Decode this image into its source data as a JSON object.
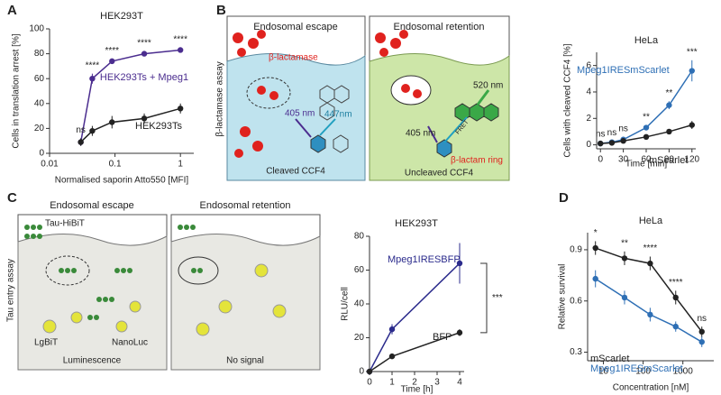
{
  "panel_labels": [
    "A",
    "B",
    "C",
    "D"
  ],
  "chart_data": [
    {
      "type": "line",
      "title": "HEK293T",
      "xlabel": "Normalised saporin Atto550 [MFI]",
      "ylabel": "Cells in translation arrest [%]",
      "xlog": true,
      "x": [
        0.03,
        0.045,
        0.09,
        0.28,
        1.0
      ],
      "xlim": [
        0.01,
        1.6
      ],
      "xticks": [
        0.01,
        0.1,
        1
      ],
      "ylim": [
        0,
        100
      ],
      "yticks": [
        0,
        20,
        40,
        60,
        80,
        100
      ],
      "series": [
        {
          "name": "HEK293Ts + Mpeg1",
          "color": "#4b2d8f",
          "values": [
            9,
            60,
            74,
            80,
            83
          ],
          "errors": [
            3,
            4,
            2,
            2,
            2
          ]
        },
        {
          "name": "HEK293Ts",
          "color": "#222222",
          "values": [
            9,
            18,
            25,
            28,
            36
          ],
          "errors": [
            3,
            4,
            5,
            4,
            4
          ]
        }
      ],
      "significance": [
        "ns",
        "****",
        "****",
        "****",
        "****"
      ]
    },
    {
      "type": "line",
      "title": "HeLa",
      "xlabel": "Time [min]",
      "ylabel": "Cells with cleaved CCF4 [%]",
      "xlog": false,
      "x": [
        0,
        15,
        30,
        60,
        90,
        120
      ],
      "xlim": [
        -5,
        125
      ],
      "xticks": [
        0,
        30,
        60,
        90,
        120
      ],
      "ylim": [
        -0.3,
        7
      ],
      "yticks": [
        0,
        2,
        4,
        6
      ],
      "series": [
        {
          "name": "Mpeg1IRESmScarlet",
          "color": "#2e6fb5",
          "values": [
            0.1,
            0.2,
            0.4,
            1.3,
            3.0,
            5.6
          ],
          "errors": [
            0.1,
            0.1,
            0.2,
            0.2,
            0.3,
            0.8
          ]
        },
        {
          "name": "mScarlet",
          "color": "#222222",
          "values": [
            0.1,
            0.15,
            0.3,
            0.6,
            1.0,
            1.5
          ],
          "errors": [
            0.1,
            0.1,
            0.1,
            0.1,
            0.2,
            0.3
          ]
        }
      ],
      "significance": [
        "ns",
        "ns",
        "ns",
        "**",
        "**",
        "***"
      ]
    },
    {
      "type": "line",
      "title": "HEK293T",
      "xlabel": "Time [h]",
      "ylabel": "RLU/cell",
      "xlog": false,
      "x": [
        0,
        1,
        4
      ],
      "xlim": [
        0,
        4.2
      ],
      "xticks": [
        0,
        1,
        2,
        3,
        4
      ],
      "ylim": [
        0,
        80
      ],
      "yticks": [
        0,
        20,
        40,
        60,
        80
      ],
      "series": [
        {
          "name": "Mpeg1IRESBFP",
          "color": "#2b2b8c",
          "values": [
            0,
            25,
            64
          ],
          "errors": [
            0,
            3,
            12
          ]
        },
        {
          "name": "BFP",
          "color": "#222222",
          "values": [
            0,
            9,
            23
          ],
          "errors": [
            0,
            1,
            2
          ]
        }
      ],
      "annotation": "***"
    },
    {
      "type": "line",
      "title": "HeLa",
      "xlabel": "Concentration [nM]",
      "ylabel": "Relative survival",
      "xlog": true,
      "x": [
        6.3,
        34,
        150,
        660,
        3000
      ],
      "xlim": [
        4,
        6000
      ],
      "xticks": [
        10,
        100,
        1000
      ],
      "ylim": [
        0.25,
        1.0
      ],
      "yticks": [
        0.3,
        0.6,
        0.9
      ],
      "series": [
        {
          "name": "mScarlet",
          "color": "#222222",
          "values": [
            0.91,
            0.85,
            0.82,
            0.62,
            0.42
          ],
          "errors": [
            0.04,
            0.04,
            0.04,
            0.04,
            0.03
          ]
        },
        {
          "name": "Mpeg1IRESmScarlet",
          "color": "#2e6fb5",
          "values": [
            0.73,
            0.62,
            0.52,
            0.45,
            0.36
          ],
          "errors": [
            0.05,
            0.04,
            0.04,
            0.03,
            0.03
          ]
        }
      ],
      "significance": [
        "*",
        "**",
        "****",
        "****",
        "ns"
      ]
    }
  ],
  "diagrams": [
    {
      "side_label": "β-lactamase assay",
      "panels": [
        {
          "title": "Endosomal escape",
          "labels": [
            "β-lactamase",
            "405 nm",
            "447nm"
          ],
          "caption": "Cleaved CCF4"
        },
        {
          "title": "Endosomal retention",
          "labels": [
            "520 nm",
            "FRET",
            "405 nm",
            "β-lactam ring"
          ],
          "caption": "Uncleaved CCF4"
        }
      ]
    },
    {
      "side_label": "Tau entry assay",
      "panels": [
        {
          "title": "Endosomal escape",
          "labels": [
            "Tau-HiBiT",
            "LgBiT",
            "NanoLuc"
          ],
          "caption": "Luminescence"
        },
        {
          "title": "Endosomal retention",
          "labels": [],
          "caption": "No signal"
        }
      ]
    }
  ]
}
